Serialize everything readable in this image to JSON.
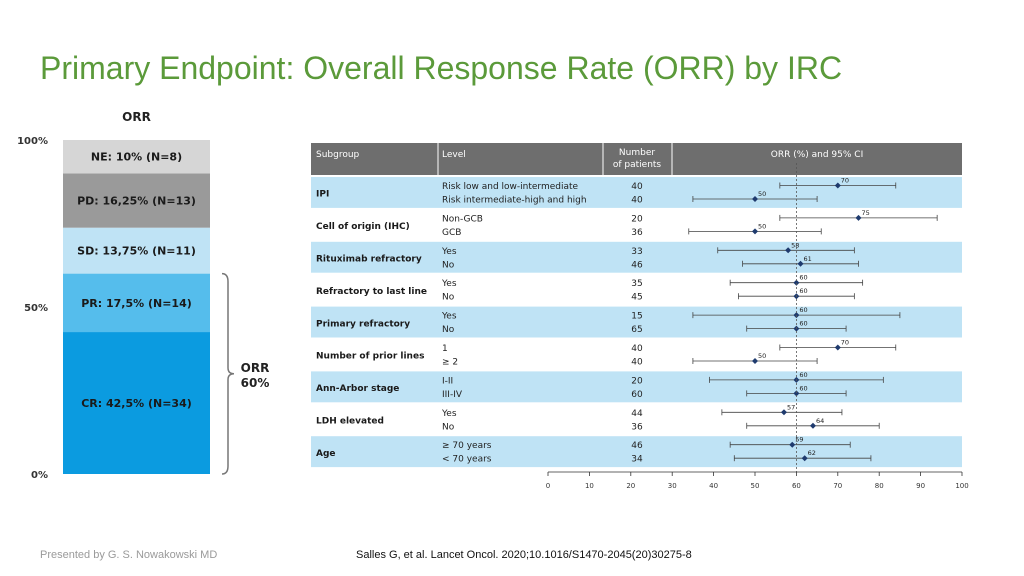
{
  "slide": {
    "title": "Primary Endpoint: Overall Response Rate (ORR) by IRC",
    "presenter": "Presented by G. S. Nowakowski MD",
    "citation": "Salles G, et al. Lancet Oncol. 2020;10.1016/S1470-2045(20)30275-8"
  },
  "chart_data": [
    {
      "type": "bar",
      "subtype": "stacked-100",
      "title": "ORR",
      "y_tick_labels": [
        "100%",
        "50%",
        "0%"
      ],
      "ylim": [
        0,
        100
      ],
      "segments": [
        {
          "label": "CR: 42,5% (N=34)",
          "value": 42.5,
          "n": 34,
          "color": "#0b9be0"
        },
        {
          "label": "PR: 17,5% (N=14)",
          "value": 17.5,
          "n": 14,
          "color": "#55bdec"
        },
        {
          "label": "SD: 13,75% (N=11)",
          "value": 13.75,
          "n": 11,
          "color": "#bfe3f5"
        },
        {
          "label": "PD: 16,25% (N=13)",
          "value": 16.25,
          "n": 13,
          "color": "#9a9a9a"
        },
        {
          "label": "NE: 10% (N=8)",
          "value": 10,
          "n": 8,
          "color": "#d6d6d6"
        }
      ],
      "bracket": {
        "label_line1": "ORR",
        "label_line2": "60%",
        "value": 60
      }
    },
    {
      "type": "forest",
      "headers": [
        "Subgroup",
        "Level",
        "Number\nof patients",
        "ORR (%) and 95% CI"
      ],
      "xlim": [
        0,
        100
      ],
      "x_ticks": [
        0,
        10,
        20,
        30,
        40,
        50,
        60,
        70,
        80,
        90,
        100
      ],
      "reference_line": 60,
      "groups": [
        {
          "subgroup": "IPI",
          "rows": [
            {
              "level": "Risk low and low-intermediate",
              "n": "40",
              "orr": 70,
              "ci": [
                56,
                84
              ]
            },
            {
              "level": "Risk intermediate-high and high",
              "n": "40",
              "orr": 50,
              "ci": [
                35,
                65
              ]
            }
          ]
        },
        {
          "subgroup": "Cell of origin (IHC)",
          "rows": [
            {
              "level": "Non-GCB",
              "n": "20",
              "orr": 75,
              "ci": [
                56,
                94
              ]
            },
            {
              "level": "GCB",
              "n": "36",
              "orr": 50,
              "ci": [
                34,
                66
              ]
            }
          ]
        },
        {
          "subgroup": "Rituximab refractory",
          "rows": [
            {
              "level": "Yes",
              "n": "33",
              "orr": 58,
              "ci": [
                41,
                74
              ]
            },
            {
              "level": "No",
              "n": "46",
              "orr": 61,
              "ci": [
                47,
                75
              ]
            }
          ]
        },
        {
          "subgroup": "Refractory to last line",
          "rows": [
            {
              "level": "Yes",
              "n": "35",
              "orr": 60,
              "ci": [
                44,
                76
              ]
            },
            {
              "level": "No",
              "n": "45",
              "orr": 60,
              "ci": [
                46,
                74
              ]
            }
          ]
        },
        {
          "subgroup": "Primary refractory",
          "rows": [
            {
              "level": "Yes",
              "n": "15",
              "orr": 60,
              "ci": [
                35,
                85
              ]
            },
            {
              "level": "No",
              "n": "65",
              "orr": 60,
              "ci": [
                48,
                72
              ]
            }
          ]
        },
        {
          "subgroup": "Number of prior lines",
          "rows": [
            {
              "level": "1",
              "n": "40",
              "orr": 70,
              "ci": [
                56,
                84
              ]
            },
            {
              "level": "≥ 2",
              "n": "40",
              "orr": 50,
              "ci": [
                35,
                65
              ]
            }
          ]
        },
        {
          "subgroup": "Ann-Arbor stage",
          "rows": [
            {
              "level": "I-II",
              "n": "20",
              "orr": 60,
              "ci": [
                39,
                81
              ]
            },
            {
              "level": "III-IV",
              "n": "60",
              "orr": 60,
              "ci": [
                48,
                72
              ]
            }
          ]
        },
        {
          "subgroup": "LDH elevated",
          "rows": [
            {
              "level": "Yes",
              "n": "44",
              "orr": 57,
              "ci": [
                42,
                71
              ]
            },
            {
              "level": "No",
              "n": "36",
              "orr": 64,
              "ci": [
                48,
                80
              ]
            }
          ]
        },
        {
          "subgroup": "Age",
          "rows": [
            {
              "level": "≥ 70 years",
              "n": "46",
              "orr": 59,
              "ci": [
                44,
                73
              ]
            },
            {
              "level": "< 70 years",
              "n": "34",
              "orr": 62,
              "ci": [
                45,
                78
              ]
            }
          ]
        }
      ]
    }
  ],
  "colors": {
    "title": "#5b9a3a",
    "header_bg": "#6e6e6e",
    "band": "#bfe3f5",
    "marker": "#1f3b6e"
  }
}
